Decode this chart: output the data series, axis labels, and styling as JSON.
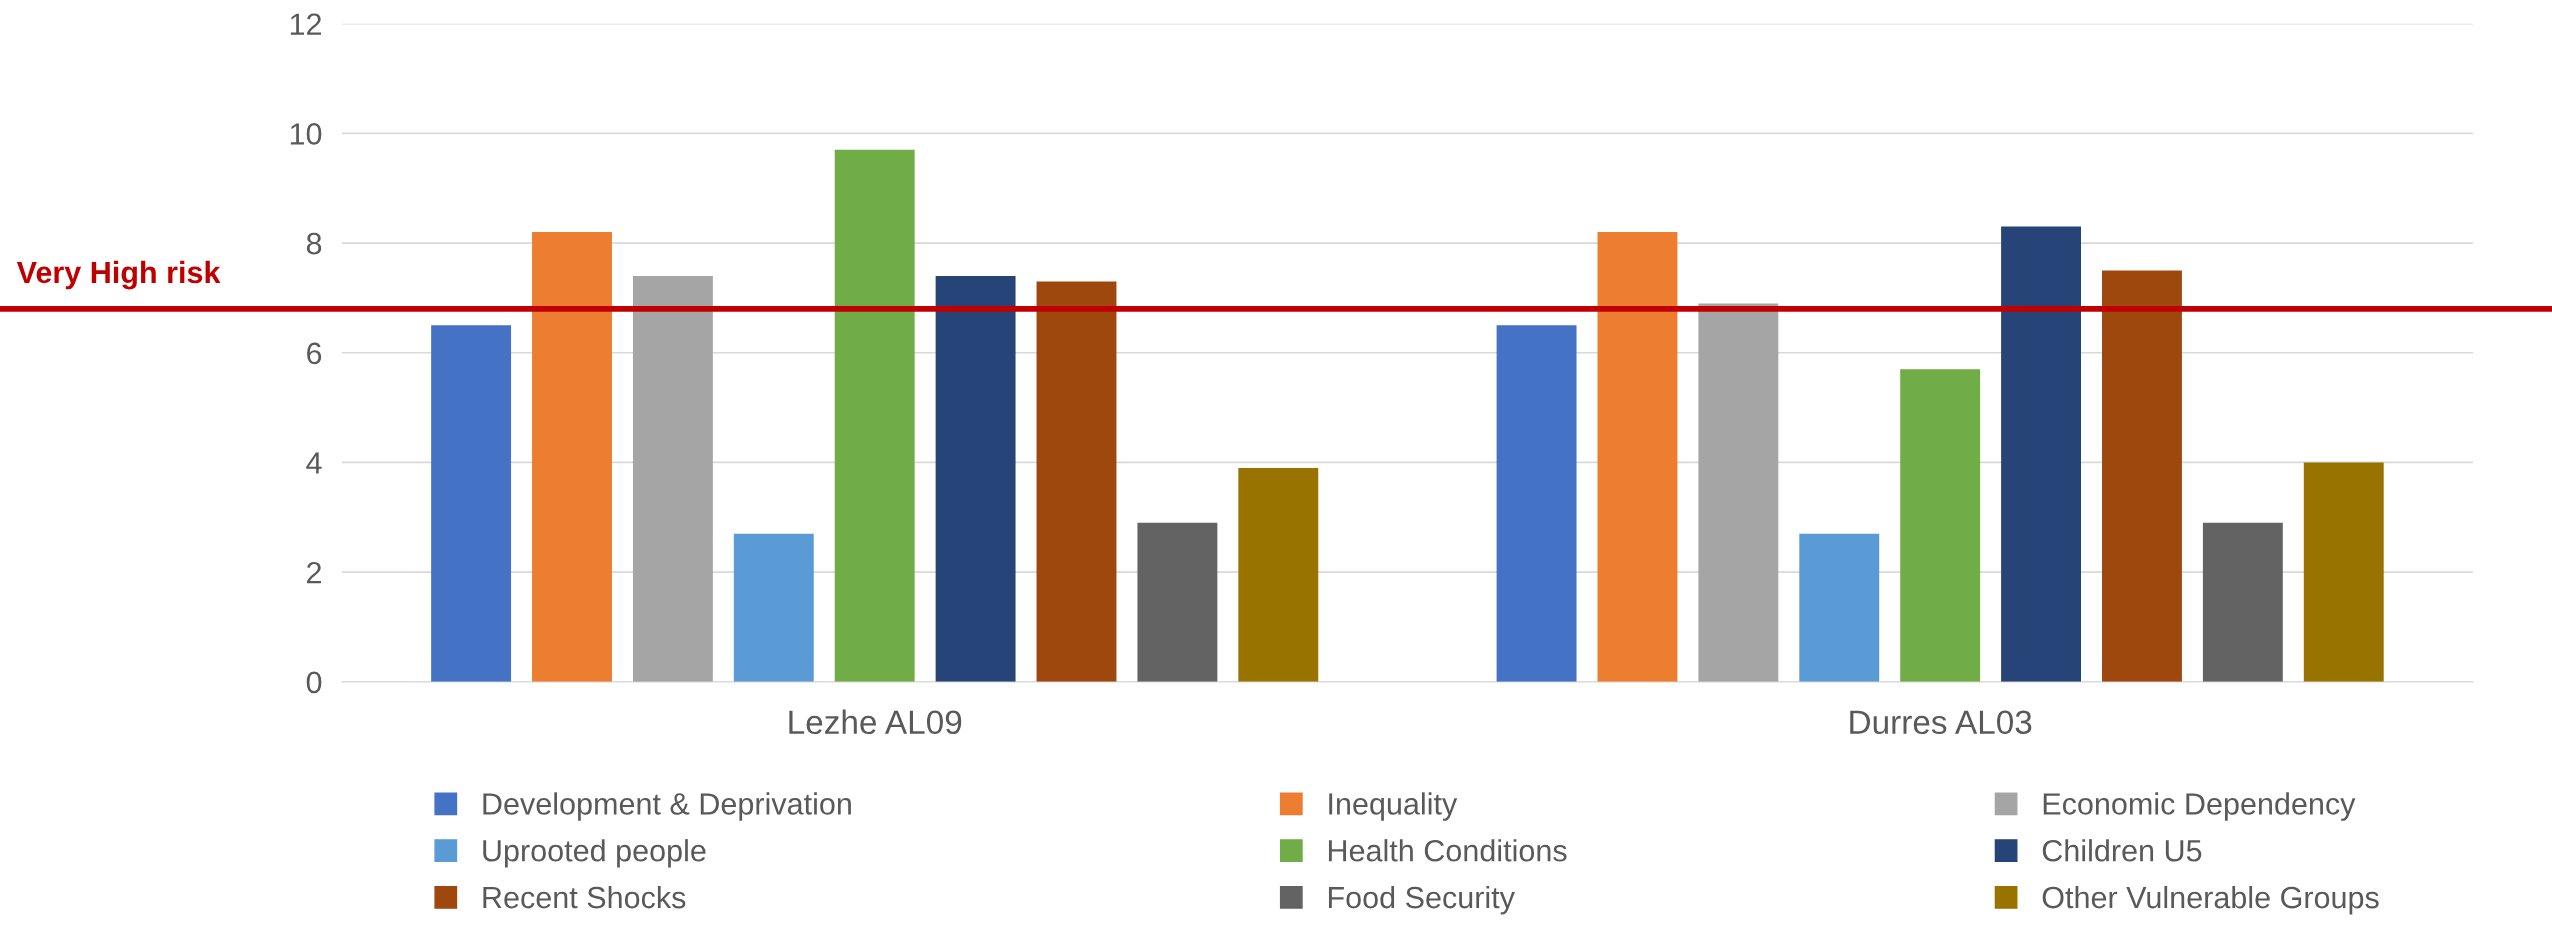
{
  "chart_data": {
    "type": "bar",
    "categories": [
      "Lezhe AL09",
      "Durres AL03"
    ],
    "series": [
      {
        "name": "Development & Deprivation",
        "color": "#4472c4",
        "values": [
          6.5,
          6.5
        ]
      },
      {
        "name": "Inequality",
        "color": "#ed7d31",
        "values": [
          8.2,
          8.2
        ]
      },
      {
        "name": "Economic Dependency",
        "color": "#a5a5a5",
        "values": [
          7.4,
          6.9
        ]
      },
      {
        "name": "Uprooted people",
        "color": "#5b9bd5",
        "values": [
          2.7,
          2.7
        ]
      },
      {
        "name": "Health Conditions",
        "color": "#70ad47",
        "values": [
          9.7,
          5.7
        ]
      },
      {
        "name": "Children U5",
        "color": "#264478",
        "values": [
          7.4,
          8.3
        ]
      },
      {
        "name": "Recent Shocks",
        "color": "#9e480e",
        "values": [
          7.3,
          7.5
        ]
      },
      {
        "name": "Food Security",
        "color": "#636363",
        "values": [
          2.9,
          2.9
        ]
      },
      {
        "name": "Other Vulnerable Groups",
        "color": "#997300",
        "values": [
          3.9,
          4.0
        ]
      }
    ],
    "ylim": [
      0,
      12
    ],
    "yticks": [
      0,
      2,
      4,
      6,
      8,
      10,
      12
    ],
    "grid": "y",
    "legend": "bottom",
    "ref_lines": [
      {
        "axis": "y",
        "value": 6.8,
        "label": "Very High risk",
        "color": "#c00000"
      }
    ]
  }
}
